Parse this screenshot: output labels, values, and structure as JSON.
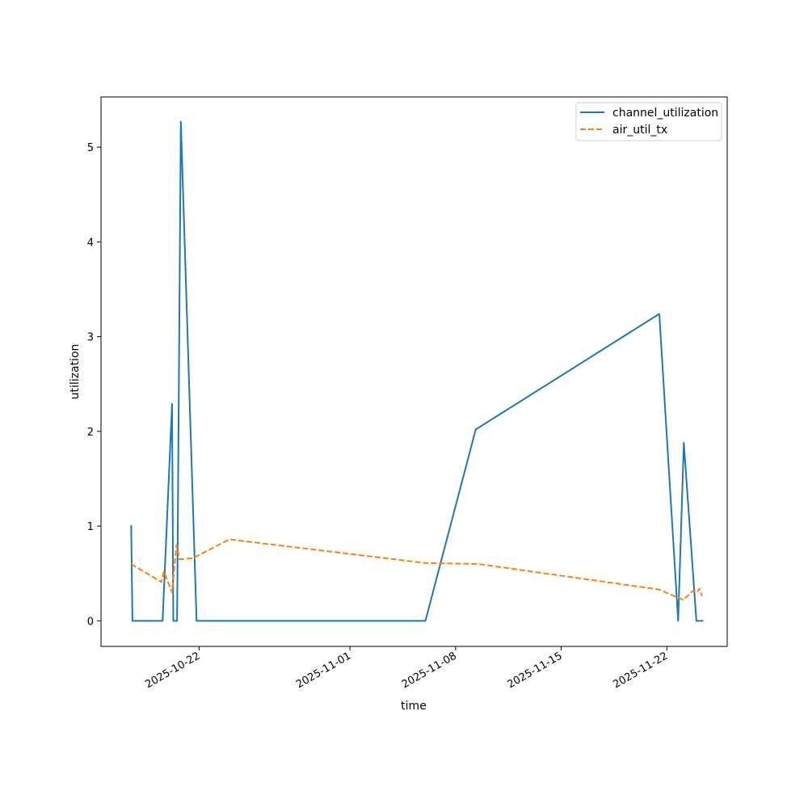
{
  "chart_data": {
    "type": "line",
    "xlabel": "time",
    "ylabel": "utilization",
    "x_type": "date",
    "xlim": [
      "2025-10-15 12:00",
      "2025-11-26 00:00"
    ],
    "ylim": [
      -0.27,
      5.53
    ],
    "x_ticks": [
      "2025-10-22",
      "2025-11-01",
      "2025-11-08",
      "2025-11-15",
      "2025-11-22"
    ],
    "y_ticks": [
      0,
      1,
      2,
      3,
      4,
      5
    ],
    "legend_position": "top-right",
    "grid": false,
    "series": [
      {
        "name": "channel_utilization",
        "color": "#1f77b4",
        "style": "solid",
        "points": [
          [
            "2025-10-17 12:00",
            1.01
          ],
          [
            "2025-10-17 14:00",
            0.0
          ],
          [
            "2025-10-19 14:00",
            0.0
          ],
          [
            "2025-10-20 05:00",
            2.29
          ],
          [
            "2025-10-20 07:00",
            0.0
          ],
          [
            "2025-10-20 13:00",
            0.0
          ],
          [
            "2025-10-20 19:00",
            5.27
          ],
          [
            "2025-10-21 20:00",
            0.0
          ],
          [
            "2025-11-06 00:00",
            0.0
          ],
          [
            "2025-11-09 08:00",
            2.02
          ],
          [
            "2025-11-21 12:00",
            3.24
          ],
          [
            "2025-11-22 18:00",
            0.0
          ],
          [
            "2025-11-23 03:00",
            1.88
          ],
          [
            "2025-11-23 23:00",
            0.0
          ],
          [
            "2025-11-24 10:00",
            0.0
          ]
        ]
      },
      {
        "name": "air_util_tx",
        "color": "#ff7f0e",
        "style": "dashed",
        "points": [
          [
            "2025-10-17 12:00",
            0.6
          ],
          [
            "2025-10-19 12:00",
            0.41
          ],
          [
            "2025-10-19 16:00",
            0.52
          ],
          [
            "2025-10-20 05:00",
            0.3
          ],
          [
            "2025-10-20 12:00",
            0.8
          ],
          [
            "2025-10-20 17:00",
            0.65
          ],
          [
            "2025-10-21 14:00",
            0.66
          ],
          [
            "2025-10-24 00:00",
            0.86
          ],
          [
            "2025-11-06 00:00",
            0.61
          ],
          [
            "2025-11-09 12:00",
            0.6
          ],
          [
            "2025-11-21 12:00",
            0.33
          ],
          [
            "2025-11-23 02:00",
            0.22
          ],
          [
            "2025-11-23 18:00",
            0.32
          ],
          [
            "2025-11-24 00:00",
            0.3
          ],
          [
            "2025-11-24 04:00",
            0.34
          ],
          [
            "2025-11-24 08:00",
            0.26
          ]
        ]
      }
    ]
  }
}
